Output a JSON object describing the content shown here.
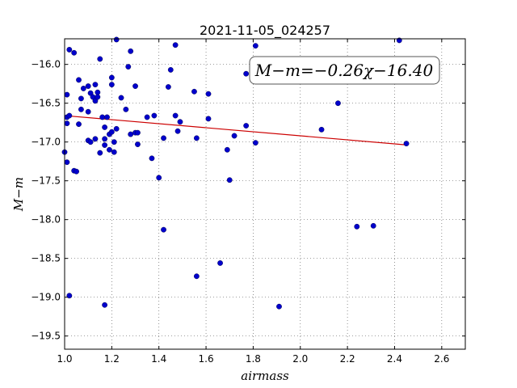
{
  "chart_data": {
    "type": "scatter",
    "title": "2021-11-05_024257",
    "xlabel": "airmass",
    "ylabel": "M−m",
    "xlim": [
      1.0,
      2.7
    ],
    "ylim": [
      -19.67,
      -15.67
    ],
    "x_ticks": [
      "1.0",
      "1.2",
      "1.4",
      "1.6",
      "1.8",
      "2.0",
      "2.2",
      "2.4",
      "2.6"
    ],
    "y_ticks": [
      "−16.0",
      "−16.5",
      "−17.0",
      "−17.5",
      "−18.0",
      "−18.5",
      "−19.0",
      "−19.5"
    ],
    "grid": true,
    "annotation": "M−m=−0.26χ−16.40",
    "point_color": "#0000cc",
    "fit_color": "#cc0000",
    "fit": {
      "slope": -0.26,
      "intercept": -16.4,
      "x_range": [
        1.0,
        2.45
      ]
    },
    "points": [
      [
        1.0,
        -17.13
      ],
      [
        1.01,
        -16.39
      ],
      [
        1.01,
        -16.76
      ],
      [
        1.01,
        -16.68
      ],
      [
        1.01,
        -17.26
      ],
      [
        1.02,
        -15.81
      ],
      [
        1.02,
        -16.66
      ],
      [
        1.02,
        -18.98
      ],
      [
        1.04,
        -15.85
      ],
      [
        1.04,
        -17.37
      ],
      [
        1.05,
        -17.38
      ],
      [
        1.06,
        -16.2
      ],
      [
        1.06,
        -16.77
      ],
      [
        1.07,
        -16.58
      ],
      [
        1.07,
        -16.44
      ],
      [
        1.08,
        -16.31
      ],
      [
        1.1,
        -16.28
      ],
      [
        1.1,
        -16.61
      ],
      [
        1.1,
        -16.98
      ],
      [
        1.11,
        -17.0
      ],
      [
        1.11,
        -16.37
      ],
      [
        1.12,
        -16.42
      ],
      [
        1.13,
        -16.26
      ],
      [
        1.13,
        -16.47
      ],
      [
        1.13,
        -16.96
      ],
      [
        1.14,
        -16.36
      ],
      [
        1.14,
        -16.42
      ],
      [
        1.15,
        -15.93
      ],
      [
        1.15,
        -17.14
      ],
      [
        1.16,
        -16.68
      ],
      [
        1.17,
        -17.04
      ],
      [
        1.17,
        -16.81
      ],
      [
        1.17,
        -16.96
      ],
      [
        1.17,
        -19.1
      ],
      [
        1.18,
        -16.68
      ],
      [
        1.19,
        -16.9
      ],
      [
        1.19,
        -17.1
      ],
      [
        1.2,
        -16.17
      ],
      [
        1.2,
        -16.26
      ],
      [
        1.2,
        -16.87
      ],
      [
        1.21,
        -17.13
      ],
      [
        1.21,
        -17.0
      ],
      [
        1.22,
        -15.68
      ],
      [
        1.22,
        -16.83
      ],
      [
        1.24,
        -16.43
      ],
      [
        1.26,
        -16.58
      ],
      [
        1.27,
        -16.03
      ],
      [
        1.28,
        -15.83
      ],
      [
        1.28,
        -16.9
      ],
      [
        1.3,
        -16.28
      ],
      [
        1.3,
        -16.88
      ],
      [
        1.31,
        -17.03
      ],
      [
        1.31,
        -16.88
      ],
      [
        1.35,
        -16.68
      ],
      [
        1.37,
        -17.21
      ],
      [
        1.38,
        -16.66
      ],
      [
        1.4,
        -17.46
      ],
      [
        1.42,
        -16.95
      ],
      [
        1.42,
        -18.13
      ],
      [
        1.44,
        -16.29
      ],
      [
        1.45,
        -16.07
      ],
      [
        1.47,
        -15.75
      ],
      [
        1.47,
        -16.66
      ],
      [
        1.48,
        -16.86
      ],
      [
        1.49,
        -16.74
      ],
      [
        1.55,
        -16.35
      ],
      [
        1.56,
        -16.95
      ],
      [
        1.56,
        -18.73
      ],
      [
        1.61,
        -16.38
      ],
      [
        1.61,
        -16.7
      ],
      [
        1.66,
        -18.56
      ],
      [
        1.69,
        -17.1
      ],
      [
        1.7,
        -17.49
      ],
      [
        1.72,
        -16.92
      ],
      [
        1.77,
        -16.12
      ],
      [
        1.77,
        -16.79
      ],
      [
        1.81,
        -15.76
      ],
      [
        1.81,
        -17.01
      ],
      [
        1.91,
        -19.12
      ],
      [
        2.09,
        -16.84
      ],
      [
        2.16,
        -16.5
      ],
      [
        2.24,
        -18.09
      ],
      [
        2.31,
        -18.08
      ],
      [
        2.42,
        -15.69
      ],
      [
        2.45,
        -17.02
      ]
    ]
  }
}
